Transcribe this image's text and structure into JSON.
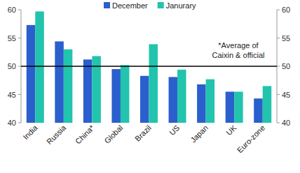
{
  "chart_data": {
    "type": "bar",
    "categories": [
      "India",
      "Russia",
      "China*",
      "Global",
      "Brazil",
      "US",
      "Japan",
      "UK",
      "Euro-zone"
    ],
    "series": [
      {
        "name": "December",
        "color": "#2b5fce",
        "values": [
          57.3,
          54.4,
          51.2,
          49.5,
          48.3,
          48.1,
          46.8,
          45.5,
          44.3
        ]
      },
      {
        "name": "Janurary",
        "color": "#22c4ad",
        "values": [
          59.7,
          53.0,
          51.8,
          50.2,
          53.9,
          49.4,
          47.7,
          45.5,
          46.5
        ]
      }
    ],
    "ylim": [
      40,
      60
    ],
    "yticks": [
      40,
      45,
      50,
      55,
      60
    ],
    "reference_line": 50,
    "annotation": "*Average of\nCaixin & official",
    "grid": false,
    "legend": "top"
  }
}
